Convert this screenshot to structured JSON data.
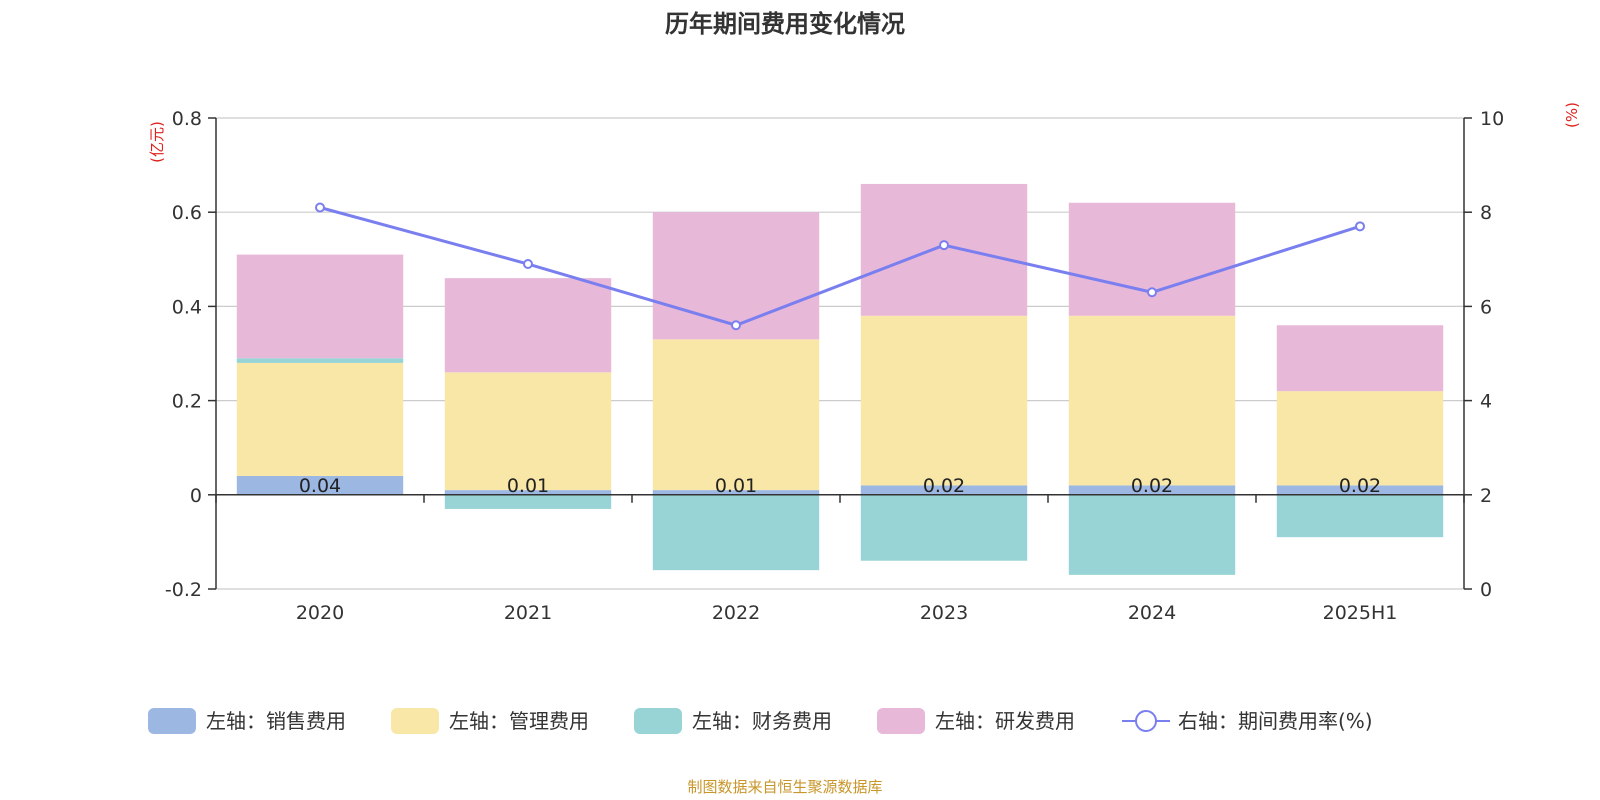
{
  "chart_data": {
    "type": "bar",
    "stacked": true,
    "title": "历年期间费用变化情况",
    "categories": [
      "2020",
      "2021",
      "2022",
      "2023",
      "2024",
      "2025H1"
    ],
    "left_axis": {
      "unit": "(亿元)",
      "ylim": [
        -0.2,
        0.8
      ],
      "ticks": [
        "0.8",
        "0.6",
        "0.4",
        "0.2",
        "0",
        "-0.2"
      ]
    },
    "right_axis": {
      "unit": "(%)",
      "ylim": [
        0,
        10
      ],
      "ticks": [
        "10",
        "8",
        "6",
        "4",
        "2",
        "0"
      ]
    },
    "grid": true,
    "series": [
      {
        "name": "左轴：销售费用",
        "axis": "left",
        "kind": "bar",
        "color": "#9db7e3",
        "values": [
          0.04,
          0.01,
          0.01,
          0.02,
          0.02,
          0.02
        ],
        "labels": [
          "0.04",
          "0.01",
          "0.01",
          "0.02",
          "0.02",
          "0.02"
        ]
      },
      {
        "name": "左轴：管理费用",
        "axis": "left",
        "kind": "bar",
        "color": "#f8e7a7",
        "values": [
          0.24,
          0.25,
          0.32,
          0.36,
          0.36,
          0.2
        ]
      },
      {
        "name": "左轴：财务费用",
        "axis": "left",
        "kind": "bar",
        "color": "#98d4d6",
        "values": [
          0.01,
          -0.03,
          -0.16,
          -0.14,
          -0.17,
          -0.09
        ]
      },
      {
        "name": "左轴：研发费用",
        "axis": "left",
        "kind": "bar",
        "color": "#e8b8d9",
        "values": [
          0.22,
          0.2,
          0.27,
          0.28,
          0.24,
          0.14
        ]
      },
      {
        "name": "右轴：期间费用率(%)",
        "axis": "right",
        "kind": "line",
        "color": "#7a7fef",
        "values": [
          8.1,
          6.9,
          5.6,
          7.3,
          6.3,
          7.7
        ]
      }
    ],
    "legend_position": "bottom",
    "source": "制图数据来自恒生聚源数据库"
  }
}
